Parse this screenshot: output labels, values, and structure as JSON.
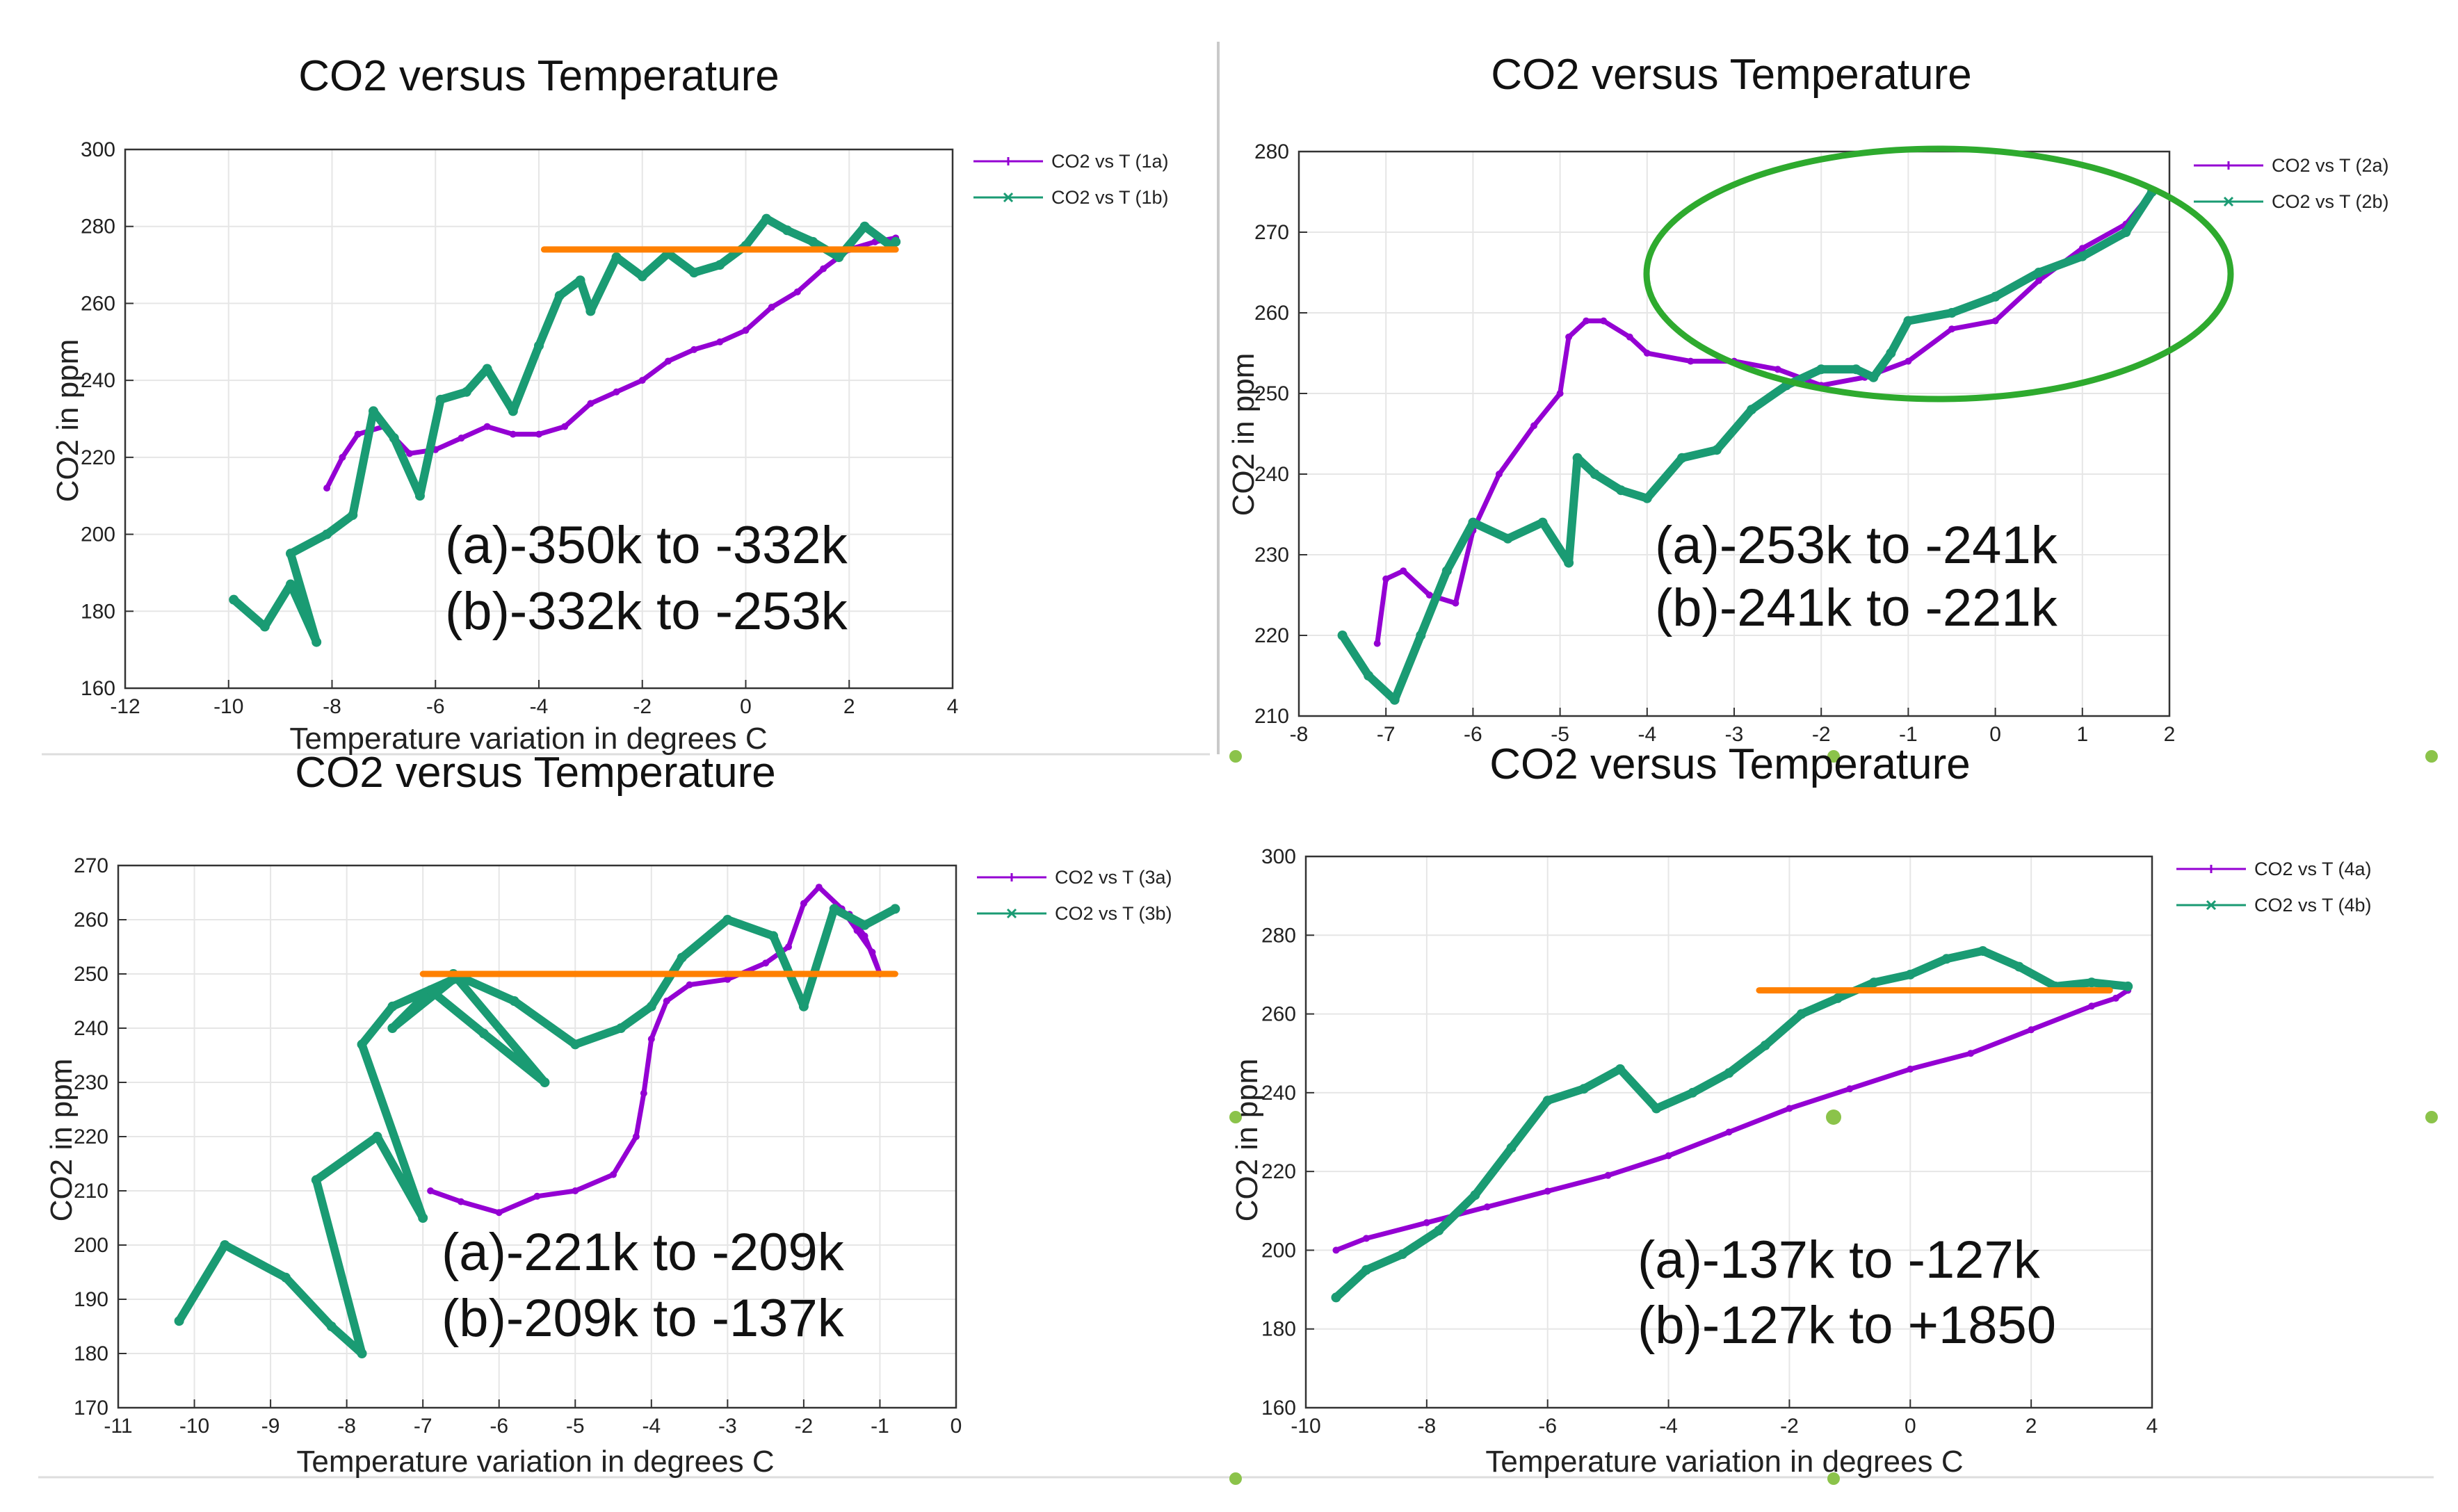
{
  "chart_data": [
    {
      "type": "line",
      "title": "CO2 versus Temperature",
      "xlabel": "Temperature variation in degrees C",
      "ylabel": "CO2 in ppm",
      "xlim": [
        -12,
        4
      ],
      "ylim": [
        160,
        300
      ],
      "xticks": [
        -12,
        -10,
        -8,
        -6,
        -4,
        -2,
        0,
        2,
        4
      ],
      "yticks": [
        160,
        180,
        200,
        220,
        240,
        260,
        280,
        300
      ],
      "xtick_labels": [
        "-12",
        "-10",
        "-8",
        "-6",
        "-4",
        "-2",
        "0",
        "2",
        "4"
      ],
      "ytick_labels": [
        "160",
        "180",
        "200",
        "220",
        "240",
        "260",
        "280",
        "300"
      ],
      "grid": true,
      "legend_position": "top-right-outside",
      "annotation_lines": [
        "(a)-350k to -332k",
        "(b)-332k to -253k"
      ],
      "series": [
        {
          "name": "CO2 vs T (1a)",
          "color": "#9400d3",
          "marker": "plus",
          "x": [
            -8.1,
            -7.8,
            -7.5,
            -7.0,
            -6.5,
            -6.0,
            -5.5,
            -5.0,
            -4.5,
            -4.0,
            -3.5,
            -3.0,
            -2.5,
            -2.0,
            -1.5,
            -1.0,
            -0.5,
            0.0,
            0.5,
            1.0,
            1.5,
            2.0,
            2.5,
            2.9
          ],
          "y": [
            212,
            220,
            226,
            228,
            221,
            222,
            225,
            228,
            226,
            226,
            228,
            234,
            237,
            240,
            245,
            248,
            250,
            253,
            259,
            263,
            269,
            274,
            276,
            277
          ]
        },
        {
          "name": "CO2 vs T (1b)",
          "color": "#1a9b73",
          "marker": "cross",
          "x": [
            -9.9,
            -9.3,
            -8.8,
            -8.3,
            -8.8,
            -8.1,
            -7.6,
            -7.2,
            -6.8,
            -6.3,
            -5.9,
            -5.4,
            -5.0,
            -4.5,
            -4.0,
            -3.6,
            -3.2,
            -3.0,
            -2.5,
            -2.0,
            -1.5,
            -1.0,
            -0.5,
            0.0,
            0.4,
            0.8,
            1.3,
            1.8,
            2.3,
            2.8,
            2.9
          ],
          "y": [
            183,
            176,
            187,
            172,
            195,
            200,
            205,
            232,
            225,
            210,
            235,
            237,
            243,
            232,
            249,
            262,
            266,
            258,
            272,
            267,
            273,
            268,
            270,
            275,
            282,
            279,
            276,
            272,
            280,
            275,
            276
          ]
        },
        {
          "name": "orange reference",
          "color": "#ff8000",
          "marker": "none",
          "x": [
            -3.9,
            2.9
          ],
          "y": [
            274,
            274
          ]
        }
      ]
    },
    {
      "type": "line",
      "title": "CO2 versus Temperature",
      "xlabel": "",
      "ylabel": "CO2 in ppm",
      "xlim": [
        -8,
        2
      ],
      "ylim": [
        210,
        280
      ],
      "xticks": [
        -8,
        -7,
        -6,
        -5,
        -4,
        -3,
        -2,
        -1,
        0,
        1,
        2
      ],
      "yticks": [
        210,
        220,
        230,
        240,
        250,
        260,
        270,
        280
      ],
      "xtick_labels": [
        "-8",
        "-7",
        "-6",
        "-5",
        "-4",
        "-3",
        "-2",
        "-1",
        "0",
        "1",
        "2"
      ],
      "ytick_labels": [
        "210",
        "220",
        "230",
        "240",
        "250",
        "260",
        "270",
        "280"
      ],
      "grid": true,
      "legend_position": "top-right-outside",
      "annotation_lines": [
        "(a)-253k to -241k",
        "(b)-241k to -221k"
      ],
      "highlight_ellipse": {
        "x_center": -0.7,
        "y_center": 263,
        "x_radius": 3.3,
        "y_radius": 12.5,
        "color": "#2eaa2e"
      },
      "series": [
        {
          "name": "CO2 vs T (2a)",
          "color": "#9400d3",
          "marker": "plus",
          "x": [
            -7.1,
            -7.0,
            -6.8,
            -6.5,
            -6.2,
            -6.0,
            -5.7,
            -5.3,
            -5.0,
            -4.9,
            -4.7,
            -4.5,
            -4.2,
            -4.0,
            -3.5,
            -3.0,
            -2.5,
            -2.0,
            -1.5,
            -1.0,
            -0.5,
            0.0,
            0.5,
            1.0,
            1.5,
            1.8
          ],
          "y": [
            219,
            227,
            228,
            225,
            224,
            233,
            240,
            246,
            250,
            257,
            259,
            259,
            257,
            255,
            254,
            254,
            253,
            251,
            252,
            254,
            258,
            259,
            264,
            268,
            271,
            275
          ]
        },
        {
          "name": "CO2 vs T (2b)",
          "color": "#1a9b73",
          "marker": "cross",
          "x": [
            -7.5,
            -7.2,
            -6.9,
            -6.6,
            -6.3,
            -6.0,
            -5.6,
            -5.2,
            -4.9,
            -4.8,
            -4.6,
            -4.3,
            -4.0,
            -3.6,
            -3.2,
            -2.8,
            -2.4,
            -2.0,
            -1.6,
            -1.4,
            -1.2,
            -1.0,
            -0.5,
            0.0,
            0.5,
            1.0,
            1.5,
            1.8
          ],
          "y": [
            220,
            215,
            212,
            220,
            228,
            234,
            232,
            234,
            229,
            242,
            240,
            238,
            237,
            242,
            243,
            248,
            251,
            253,
            253,
            252,
            255,
            259,
            260,
            262,
            265,
            267,
            270,
            275
          ]
        }
      ]
    },
    {
      "type": "line",
      "title": "CO2 versus Temperature",
      "xlabel": "Temperature variation in degrees C",
      "ylabel": "CO2 in ppm",
      "xlim": [
        -11,
        0
      ],
      "ylim": [
        170,
        270
      ],
      "xticks": [
        -11,
        -10,
        -9,
        -8,
        -7,
        -6,
        -5,
        -4,
        -3,
        -2,
        -1,
        0
      ],
      "yticks": [
        170,
        180,
        190,
        200,
        210,
        220,
        230,
        240,
        250,
        260,
        270
      ],
      "xtick_labels": [
        "-11",
        "-10",
        "-9",
        "-8",
        "-7",
        "-6",
        "-5",
        "-4",
        "-3",
        "-2",
        "-1",
        "0"
      ],
      "ytick_labels": [
        "170",
        "180",
        "190",
        "200",
        "210",
        "220",
        "230",
        "240",
        "250",
        "260",
        "270"
      ],
      "grid": true,
      "legend_position": "top-right-outside",
      "annotation_lines": [
        "(a)-221k to -209k",
        "(b)-209k to -137k"
      ],
      "series": [
        {
          "name": "CO2 vs T (3a)",
          "color": "#9400d3",
          "marker": "plus",
          "x": [
            -6.9,
            -6.5,
            -6.0,
            -5.5,
            -5.0,
            -4.5,
            -4.2,
            -4.1,
            -4.0,
            -3.8,
            -3.5,
            -3.0,
            -2.5,
            -2.2,
            -2.0,
            -1.8,
            -1.5,
            -1.3,
            -1.1,
            -1.0,
            -1.2,
            -1.4
          ],
          "y": [
            210,
            208,
            206,
            209,
            210,
            213,
            220,
            228,
            238,
            245,
            248,
            249,
            252,
            255,
            263,
            266,
            262,
            258,
            254,
            250,
            257,
            261
          ]
        },
        {
          "name": "CO2 vs T (3b)",
          "color": "#1a9b73",
          "marker": "cross",
          "x": [
            -10.2,
            -9.6,
            -8.8,
            -8.2,
            -7.8,
            -8.4,
            -7.6,
            -7.0,
            -7.8,
            -7.4,
            -6.6,
            -7.4,
            -6.9,
            -6.2,
            -5.4,
            -6.6,
            -5.8,
            -5.0,
            -4.4,
            -4.0,
            -3.6,
            -3.0,
            -2.4,
            -2.0,
            -1.6,
            -1.2,
            -0.8
          ],
          "y": [
            186,
            200,
            194,
            185,
            180,
            212,
            220,
            205,
            237,
            244,
            249,
            240,
            247,
            239,
            230,
            250,
            245,
            237,
            240,
            244,
            253,
            260,
            257,
            244,
            262,
            259,
            262
          ]
        },
        {
          "name": "orange reference",
          "color": "#ff8000",
          "marker": "none",
          "x": [
            -7.0,
            -0.8
          ],
          "y": [
            250,
            250
          ]
        }
      ]
    },
    {
      "type": "line",
      "title": "CO2 versus Temperature",
      "xlabel": "Temperature variation in degrees C",
      "ylabel": "CO2 in ppm",
      "xlim": [
        -10,
        4
      ],
      "ylim": [
        160,
        300
      ],
      "xticks": [
        -10,
        -8,
        -6,
        -4,
        -2,
        0,
        2,
        4
      ],
      "yticks": [
        160,
        180,
        200,
        220,
        240,
        260,
        280,
        300
      ],
      "xtick_labels": [
        "-10",
        "-8",
        "-6",
        "-4",
        "-2",
        "0",
        "2",
        "4"
      ],
      "ytick_labels": [
        "160",
        "180",
        "200",
        "220",
        "240",
        "260",
        "280",
        "300"
      ],
      "grid": true,
      "legend_position": "top-right-outside",
      "annotation_lines": [
        "(a)-137k to -127k",
        "(b)-127k to +1850"
      ],
      "series": [
        {
          "name": "CO2 vs T (4a)",
          "color": "#9400d3",
          "marker": "plus",
          "x": [
            -9.5,
            -9.0,
            -8.0,
            -7.0,
            -6.0,
            -5.0,
            -4.0,
            -3.0,
            -2.0,
            -1.0,
            0.0,
            1.0,
            2.0,
            3.0,
            3.4,
            3.6
          ],
          "y": [
            200,
            203,
            207,
            211,
            215,
            219,
            224,
            230,
            236,
            241,
            246,
            250,
            256,
            262,
            264,
            266
          ]
        },
        {
          "name": "CO2 vs T (4b)",
          "color": "#1a9b73",
          "marker": "cross",
          "x": [
            -9.5,
            -9.0,
            -8.4,
            -7.8,
            -7.2,
            -6.6,
            -6.0,
            -5.4,
            -4.8,
            -4.2,
            -3.6,
            -3.0,
            -2.4,
            -1.8,
            -1.2,
            -0.6,
            0.0,
            0.6,
            1.2,
            1.8,
            2.4,
            3.0,
            3.6
          ],
          "y": [
            188,
            195,
            199,
            205,
            214,
            226,
            238,
            241,
            246,
            236,
            240,
            245,
            252,
            260,
            264,
            268,
            270,
            274,
            276,
            272,
            267,
            268,
            267
          ]
        },
        {
          "name": "orange reference",
          "color": "#ff8000",
          "marker": "none",
          "x": [
            -2.5,
            3.3
          ],
          "y": [
            266,
            266
          ]
        }
      ]
    }
  ]
}
